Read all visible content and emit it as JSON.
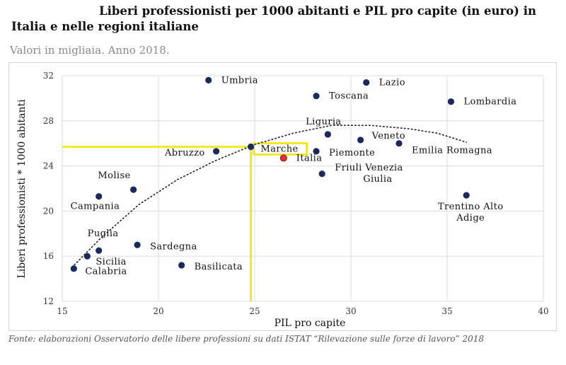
{
  "title": "Liberi professionisti per 1000 abitanti e PIL pro capite (in euro) in Italia e nelle regioni italiane",
  "subtitle": "Valori in migliaia. Anno 2018.",
  "source": "Fonte: elaborazioni Osservatorio delle libere professioni su dati ISTAT “Rilevazione sulle forze di lavoro” 2018",
  "chart_data": {
    "type": "scatter",
    "xlabel": "PIL pro capite",
    "ylabel": "Liberi professionisti * 1000 abitanti",
    "xlim": [
      15,
      40
    ],
    "ylim": [
      12,
      32
    ],
    "xticks": [
      15,
      20,
      25,
      30,
      35,
      40
    ],
    "yticks": [
      12,
      16,
      20,
      24,
      28,
      32
    ],
    "grid": true,
    "colors": {
      "point": "#1a2a5c",
      "highlight": "#e03030",
      "reference": "#f2e400",
      "grid": "#dcdcdc",
      "trend": "#222222"
    },
    "points": [
      {
        "label": "Umbria",
        "x": 22.6,
        "y": 31.6
      },
      {
        "label": "Lazio",
        "x": 30.8,
        "y": 31.4
      },
      {
        "label": "Toscana",
        "x": 28.2,
        "y": 30.2
      },
      {
        "label": "Lombardia",
        "x": 35.2,
        "y": 29.7
      },
      {
        "label": "Liguria",
        "x": 28.8,
        "y": 26.8
      },
      {
        "label": "Veneto",
        "x": 30.5,
        "y": 26.3
      },
      {
        "label": "Emilia Romagna",
        "x": 32.5,
        "y": 26.0
      },
      {
        "label": "Abruzzo",
        "x": 23.0,
        "y": 25.3
      },
      {
        "label": "Marche",
        "x": 24.8,
        "y": 25.7
      },
      {
        "label": "Piemonte",
        "x": 28.2,
        "y": 25.3
      },
      {
        "label": "Italia",
        "x": 26.5,
        "y": 24.7,
        "highlight": true
      },
      {
        "label": "Friuli Venezia Giulia",
        "x": 28.5,
        "y": 23.3
      },
      {
        "label": "Molise",
        "x": 18.7,
        "y": 21.9
      },
      {
        "label": "Campania",
        "x": 16.9,
        "y": 21.3
      },
      {
        "label": "Trentino Alto Adige",
        "x": 36.0,
        "y": 21.4
      },
      {
        "label": "Sardegna",
        "x": 18.9,
        "y": 17.0
      },
      {
        "label": "Puglia",
        "x": 16.9,
        "y": 16.5
      },
      {
        "label": "Sicilia",
        "x": 16.3,
        "y": 16.0
      },
      {
        "label": "Basilicata",
        "x": 21.2,
        "y": 15.2
      },
      {
        "label": "Calabria",
        "x": 15.6,
        "y": 14.9
      }
    ],
    "trendline": {
      "type": "polynomial",
      "x_range": [
        15.5,
        36.0
      ],
      "points": [
        [
          15.5,
          15.0
        ],
        [
          17,
          17.6
        ],
        [
          19,
          20.6
        ],
        [
          21,
          22.8
        ],
        [
          23,
          24.5
        ],
        [
          25,
          25.9
        ],
        [
          27,
          26.9
        ],
        [
          29,
          27.6
        ],
        [
          31,
          27.6
        ],
        [
          33,
          27.3
        ],
        [
          34.5,
          26.9
        ],
        [
          36,
          26.1
        ]
      ]
    },
    "reference_lines": [
      {
        "name": "Marche",
        "x": 24.8,
        "y": 25.7
      }
    ],
    "highlight_box": "Marche"
  }
}
